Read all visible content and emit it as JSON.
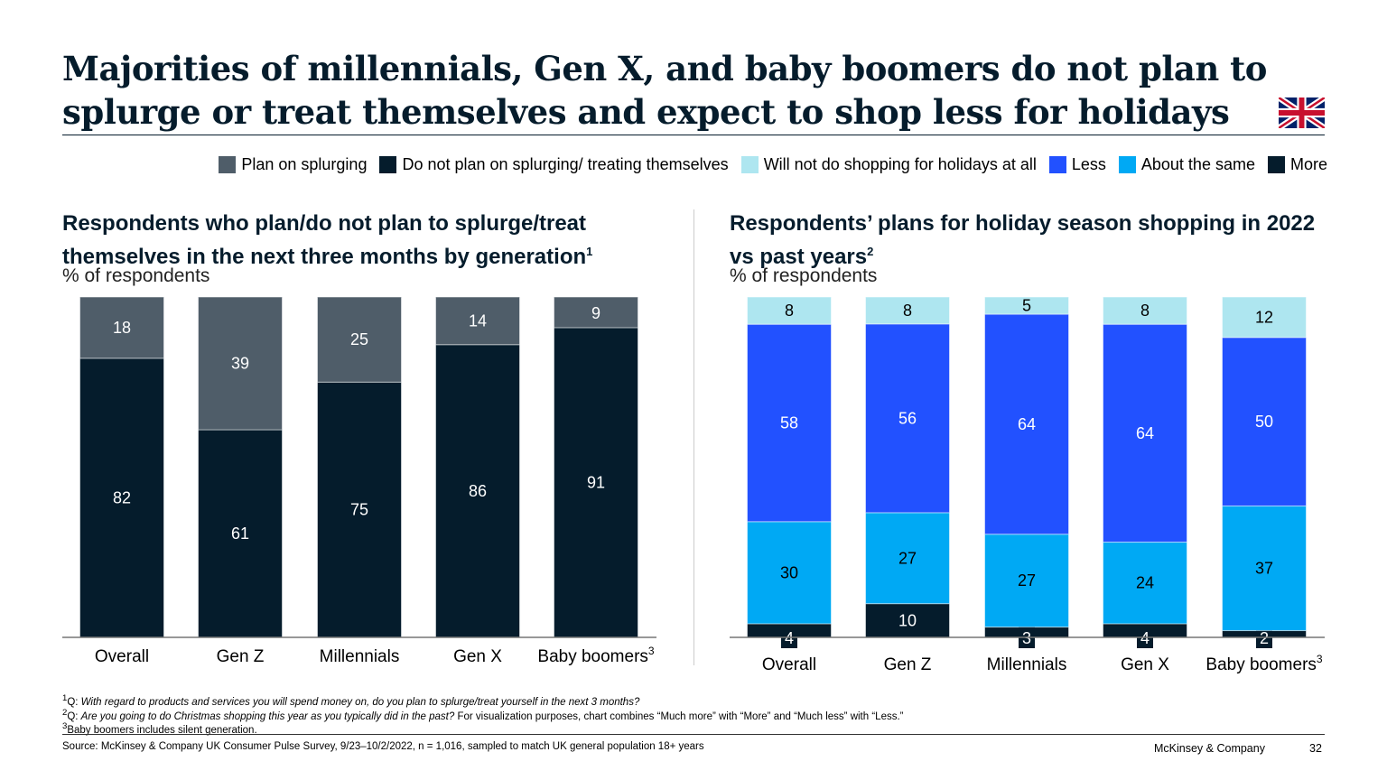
{
  "title": "Majorities of millennials, Gen X, and baby boomers do not plan to splurge or treat themselves and expect to shop less for holidays",
  "flag_icon": "uk-flag",
  "colors": {
    "plan": "#4f5d69",
    "notplan": "#051c2c",
    "none": "#aee6f0",
    "less": "#2251ff",
    "same": "#00a9f4",
    "more": "#051c2c"
  },
  "legend": [
    {
      "label": "Plan on splurging",
      "color": "#4f5d69"
    },
    {
      "label": "Do not plan on splurging/ treating themselves",
      "color": "#051c2c"
    },
    {
      "label": "Will not do shopping for holidays at all",
      "color": "#aee6f0"
    },
    {
      "label": "Less",
      "color": "#2251ff"
    },
    {
      "label": "About the same",
      "color": "#00a9f4"
    },
    {
      "label": "More",
      "color": "#051c2c"
    }
  ],
  "chart_data": [
    {
      "type": "bar",
      "stacked": true,
      "title": "Respondents who plan/do not plan to splurge/treat themselves in the next three months by generation",
      "title_sup": "1",
      "ylabel": "% of respondents",
      "categories": [
        "Overall",
        "Gen Z",
        "Millennials",
        "Gen X",
        "Baby boomers"
      ],
      "category_sups": [
        "",
        "",
        "",
        "",
        "3"
      ],
      "series": [
        {
          "name": "Do not plan on splurging/ treating themselves",
          "values": [
            82,
            61,
            75,
            86,
            91
          ]
        },
        {
          "name": "Plan on splurging",
          "values": [
            18,
            39,
            25,
            14,
            9
          ]
        }
      ]
    },
    {
      "type": "bar",
      "stacked": true,
      "title": "Respondents’ plans for holiday season shopping in 2022 vs past years",
      "title_sup": "2",
      "ylabel": "% of respondents",
      "categories": [
        "Overall",
        "Gen Z",
        "Millennials",
        "Gen X",
        "Baby boomers"
      ],
      "category_sups": [
        "",
        "",
        "",
        "",
        "3"
      ],
      "series": [
        {
          "name": "More",
          "values": [
            4,
            10,
            3,
            4,
            2
          ]
        },
        {
          "name": "About the same",
          "values": [
            30,
            27,
            27,
            24,
            37
          ]
        },
        {
          "name": "Less",
          "values": [
            58,
            56,
            64,
            64,
            50
          ]
        },
        {
          "name": "Will not do shopping for holidays at all",
          "values": [
            8,
            8,
            5,
            8,
            12
          ]
        }
      ]
    }
  ],
  "footnotes": {
    "f1_q": "Q: ",
    "f1": "With regard to products and services you will spend money on, do you plan to splurge/treat yourself in the next 3 months?",
    "f2_q": "Q: ",
    "f2_i": "Are you going to do Christmas shopping this year as you typically did in the past?",
    "f2": " For visualization purposes, chart combines “Much more” with “More” and “Much less” with “Less.”",
    "f3": "Baby boomers includes silent generation.",
    "source": "Source: McKinsey & Company UK Consumer Pulse Survey, 9/23–10/2/2022, n = 1,016, sampled to match UK general population 18+ years"
  },
  "footer": {
    "brand": "McKinsey & Company",
    "page": "32"
  }
}
